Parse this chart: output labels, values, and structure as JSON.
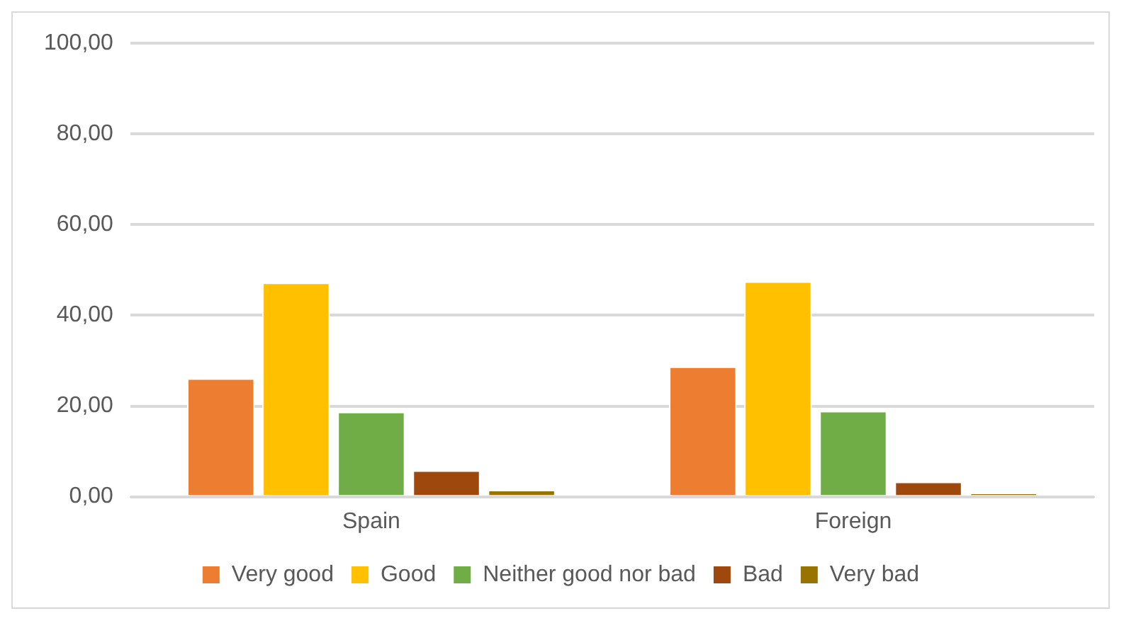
{
  "chart_data": {
    "type": "bar",
    "categories": [
      "Spain",
      "Foreign"
    ],
    "series": [
      {
        "name": "Very good",
        "color": "#ed7d31",
        "values": [
          26.1,
          28.7
        ]
      },
      {
        "name": "Good",
        "color": "#ffc000",
        "values": [
          47.2,
          47.5
        ]
      },
      {
        "name": "Neither good nor bad",
        "color": "#70ad47",
        "values": [
          18.7,
          18.9
        ]
      },
      {
        "name": "Bad",
        "color": "#9e480e",
        "values": [
          5.8,
          3.3
        ]
      },
      {
        "name": "Very bad",
        "color": "#997300",
        "values": [
          1.5,
          0.8
        ]
      }
    ],
    "ylim": [
      0,
      100
    ],
    "yticks": [
      {
        "value": 0,
        "label": "0,00"
      },
      {
        "value": 20,
        "label": "20,00"
      },
      {
        "value": 40,
        "label": "40,00"
      },
      {
        "value": 60,
        "label": "60,00"
      },
      {
        "value": 80,
        "label": "80,00"
      },
      {
        "value": 100,
        "label": "100,00"
      }
    ],
    "grid": "y",
    "legend": "bottom"
  }
}
